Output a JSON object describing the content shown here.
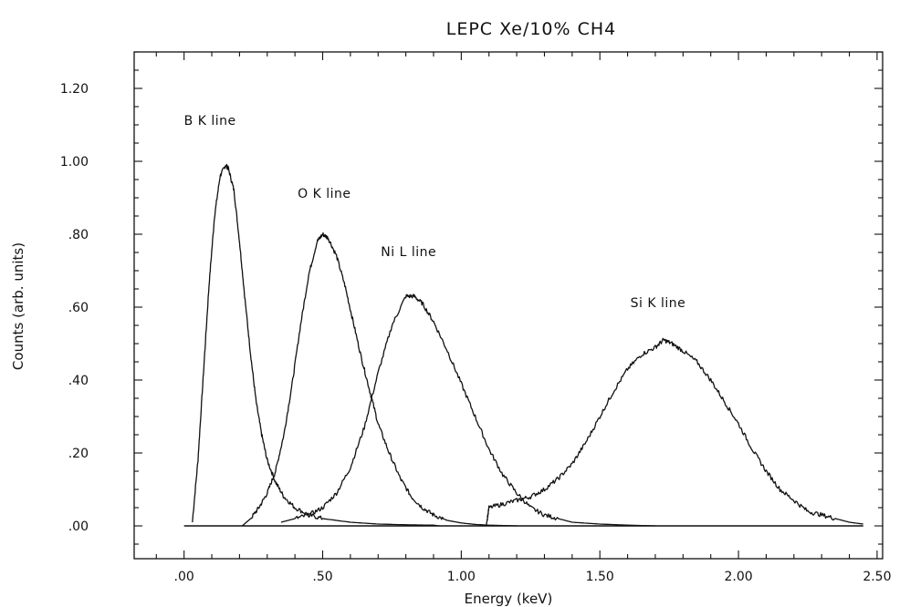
{
  "chart_data": {
    "type": "line",
    "title": "LEPC Xe/10% CH4",
    "xlabel": "Energy (keV)",
    "ylabel": "Counts (arb. units)",
    "xlim": [
      -0.18,
      2.52
    ],
    "ylim": [
      -0.09,
      1.3
    ],
    "x_ticks": [
      0.0,
      0.5,
      1.0,
      1.5,
      2.0,
      2.5
    ],
    "x_tick_labels": [
      ".00",
      ".50",
      "1.00",
      "1.50",
      "2.00",
      "2.50"
    ],
    "y_ticks": [
      0.0,
      0.2,
      0.4,
      0.6,
      0.8,
      1.0,
      1.2
    ],
    "y_tick_labels": [
      ".00",
      ".20",
      ".40",
      ".60",
      ".80",
      "1.00",
      "1.20"
    ],
    "grid": false,
    "baseline": {
      "x": [
        0.0,
        2.45
      ],
      "y": 0.0
    },
    "annotations": [
      {
        "text": "B K line",
        "x": 0.0,
        "y": 1.1
      },
      {
        "text": "O K line",
        "x": 0.41,
        "y": 0.9
      },
      {
        "text": "Ni L line",
        "x": 0.71,
        "y": 0.74
      },
      {
        "text": "Si K line",
        "x": 1.61,
        "y": 0.6
      }
    ],
    "series": [
      {
        "label": "B K line",
        "x": [
          0.03,
          0.05,
          0.07,
          0.09,
          0.11,
          0.13,
          0.15,
          0.16,
          0.18,
          0.2,
          0.22,
          0.24,
          0.26,
          0.28,
          0.3,
          0.33,
          0.36,
          0.4,
          0.45,
          0.5,
          0.6,
          0.7,
          0.8,
          0.9,
          0.92
        ],
        "y": [
          0.01,
          0.18,
          0.42,
          0.66,
          0.85,
          0.96,
          0.99,
          0.98,
          0.92,
          0.78,
          0.62,
          0.47,
          0.34,
          0.25,
          0.18,
          0.12,
          0.08,
          0.05,
          0.03,
          0.02,
          0.01,
          0.005,
          0.003,
          0.002,
          0.0
        ]
      },
      {
        "label": "O K line",
        "x": [
          0.21,
          0.24,
          0.27,
          0.3,
          0.33,
          0.36,
          0.39,
          0.42,
          0.45,
          0.48,
          0.5,
          0.52,
          0.55,
          0.58,
          0.61,
          0.64,
          0.67,
          0.7,
          0.74,
          0.78,
          0.82,
          0.86,
          0.9,
          0.95,
          1.0,
          1.05,
          1.1,
          1.2
        ],
        "y": [
          0.0,
          0.02,
          0.05,
          0.09,
          0.15,
          0.25,
          0.39,
          0.55,
          0.69,
          0.78,
          0.8,
          0.79,
          0.74,
          0.66,
          0.56,
          0.46,
          0.37,
          0.28,
          0.2,
          0.13,
          0.08,
          0.05,
          0.03,
          0.015,
          0.008,
          0.004,
          0.002,
          0.0
        ]
      },
      {
        "label": "Ni L line",
        "x": [
          0.35,
          0.4,
          0.45,
          0.5,
          0.55,
          0.6,
          0.65,
          0.7,
          0.75,
          0.8,
          0.83,
          0.86,
          0.9,
          0.95,
          1.0,
          1.05,
          1.1,
          1.15,
          1.2,
          1.25,
          1.3,
          1.35,
          1.4,
          1.5,
          1.6,
          1.7
        ],
        "y": [
          0.01,
          0.02,
          0.03,
          0.05,
          0.09,
          0.16,
          0.27,
          0.42,
          0.55,
          0.63,
          0.63,
          0.61,
          0.56,
          0.48,
          0.39,
          0.3,
          0.21,
          0.14,
          0.09,
          0.05,
          0.03,
          0.02,
          0.01,
          0.005,
          0.002,
          0.0
        ]
      },
      {
        "label": "Si K line",
        "x": [
          1.09,
          1.1,
          1.15,
          1.2,
          1.25,
          1.3,
          1.35,
          1.4,
          1.45,
          1.5,
          1.55,
          1.6,
          1.65,
          1.7,
          1.73,
          1.76,
          1.8,
          1.85,
          1.9,
          1.95,
          2.0,
          2.05,
          2.1,
          2.15,
          2.2,
          2.25,
          2.3,
          2.35,
          2.4,
          2.45
        ],
        "y": [
          0.0,
          0.05,
          0.06,
          0.07,
          0.08,
          0.1,
          0.13,
          0.17,
          0.23,
          0.3,
          0.37,
          0.43,
          0.47,
          0.49,
          0.51,
          0.5,
          0.48,
          0.45,
          0.4,
          0.34,
          0.28,
          0.21,
          0.15,
          0.1,
          0.07,
          0.04,
          0.03,
          0.02,
          0.01,
          0.005
        ]
      }
    ]
  }
}
